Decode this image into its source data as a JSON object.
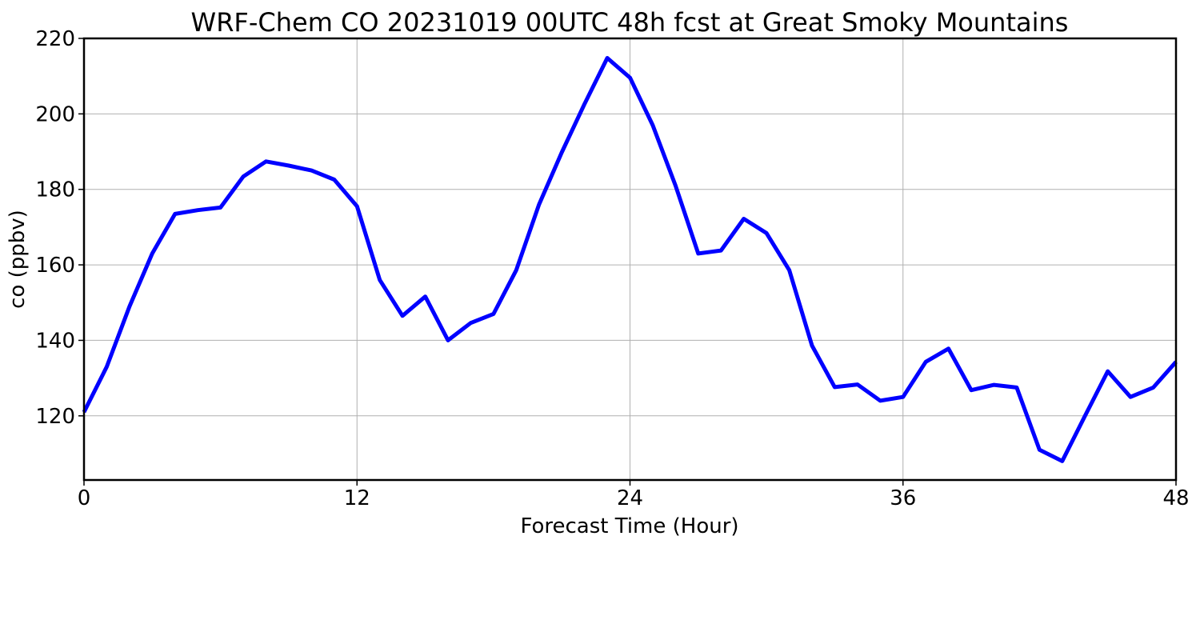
{
  "chart_data": {
    "type": "line",
    "title": "WRF-Chem CO  20231019 00UTC 48h fcst at Great Smoky Mountains",
    "xlabel": "Forecast Time (Hour)",
    "ylabel": "co  (ppbv)",
    "xlim": [
      0,
      48
    ],
    "ylim": [
      103,
      220
    ],
    "xticks": [
      0,
      12,
      24,
      36,
      48
    ],
    "yticks": [
      120,
      140,
      160,
      180,
      200,
      220
    ],
    "grid": true,
    "series": [
      {
        "color": "#0000ff",
        "x": [
          0,
          1,
          2,
          3,
          4,
          5,
          6,
          7,
          8,
          9,
          10,
          11,
          12,
          13,
          14,
          15,
          16,
          17,
          18,
          19,
          20,
          21,
          22,
          23,
          24,
          25,
          26,
          27,
          28,
          29,
          30,
          31,
          32,
          33,
          34,
          35,
          36,
          37,
          38,
          39,
          40,
          41,
          42,
          43,
          44,
          45,
          46,
          47,
          48
        ],
        "values": [
          121,
          133,
          149,
          163,
          173.5,
          174.5,
          175.2,
          183.4,
          187.4,
          186.3,
          185,
          182.6,
          175.5,
          156,
          146.5,
          151.6,
          140,
          144.6,
          147,
          158.6,
          176,
          189.8,
          202.6,
          214.8,
          209.6,
          197,
          181,
          163,
          163.8,
          172.2,
          168.4,
          158.6,
          138.6,
          127.6,
          128.3,
          124,
          125,
          134.3,
          137.8,
          126.8,
          128.2,
          127.5,
          111,
          108,
          120,
          131.8,
          125,
          127.5,
          134.3
        ]
      }
    ]
  }
}
